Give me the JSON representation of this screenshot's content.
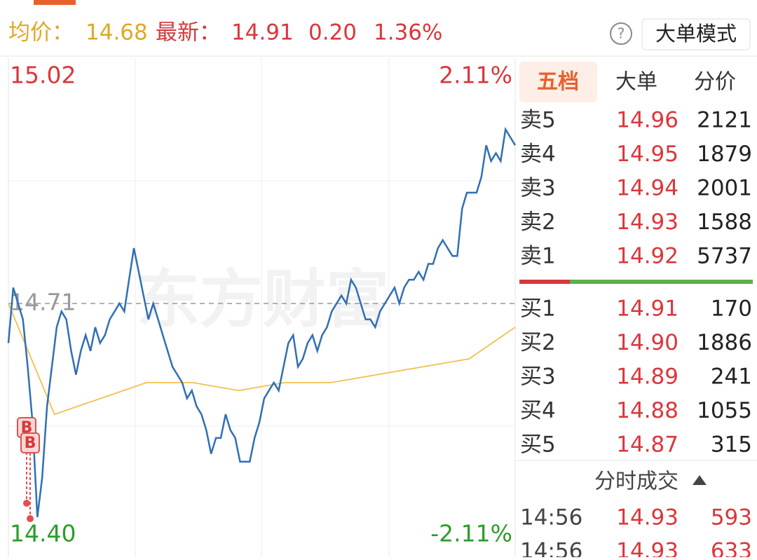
{
  "header": {
    "avg_label": "均价：",
    "avg_value": "14.68",
    "latest_label": "最新：",
    "latest_value": "14.91",
    "change": "0.20",
    "change_pct": "1.36%",
    "help_icon": "?",
    "mode_button": "大单模式"
  },
  "chart_data": {
    "type": "line",
    "watermark": "东方财富",
    "markers": [
      "B",
      "B"
    ],
    "ylim": [
      14.4,
      15.02
    ],
    "yticks": [
      {
        "value": 14.4,
        "label": "14.40"
      },
      14.71,
      15.02
    ],
    "y2lim": [
      -2.11,
      2.11
    ],
    "y2ticks": [
      {
        "value": -2.11,
        "label": "-2.11%"
      },
      {
        "value": 2.11,
        "label": "2.11%"
      }
    ],
    "series": [
      {
        "name": "price",
        "color": "#2f6fb5",
        "values": [
          14.66,
          14.73,
          14.71,
          14.69,
          14.63,
          14.56,
          14.44,
          14.49,
          14.58,
          14.63,
          14.68,
          14.7,
          14.69,
          14.65,
          14.62,
          14.65,
          14.67,
          14.65,
          14.68,
          14.66,
          14.67,
          14.69,
          14.7,
          14.71,
          14.7,
          14.74,
          14.78,
          14.75,
          14.72,
          14.69,
          14.71,
          14.69,
          14.67,
          14.65,
          14.63,
          14.62,
          14.61,
          14.59,
          14.6,
          14.58,
          14.57,
          14.55,
          14.52,
          14.54,
          14.54,
          14.57,
          14.55,
          14.54,
          14.51,
          14.51,
          14.51,
          14.54,
          14.56,
          14.59,
          14.6,
          14.61,
          14.6,
          14.63,
          14.66,
          14.67,
          14.63,
          14.64,
          14.66,
          14.67,
          14.65,
          14.67,
          14.68,
          14.7,
          14.71,
          14.72,
          14.71,
          14.74,
          14.73,
          14.71,
          14.69,
          14.69,
          14.68,
          14.7,
          14.71,
          14.72,
          14.73,
          14.71,
          14.73,
          14.74,
          14.74,
          14.75,
          14.74,
          14.76,
          14.76,
          14.78,
          14.79,
          14.78,
          14.77,
          14.77,
          14.83,
          14.85,
          14.85,
          14.85,
          14.87,
          14.91,
          14.89,
          14.9,
          14.89,
          14.93,
          14.92,
          14.91
        ]
      },
      {
        "name": "average",
        "color": "#f0c050",
        "values": [
          14.71,
          14.57,
          14.59,
          14.61,
          14.61,
          14.6,
          14.61,
          14.61,
          14.62,
          14.63,
          14.64,
          14.68
        ]
      }
    ]
  },
  "panel": {
    "tabs": [
      "五档",
      "大单",
      "分价"
    ],
    "sell": [
      [
        "卖5",
        "14.96",
        "2121"
      ],
      [
        "卖4",
        "14.95",
        "1879"
      ],
      [
        "卖3",
        "14.94",
        "2001"
      ],
      [
        "卖2",
        "14.93",
        "1588"
      ],
      [
        "卖1",
        "14.92",
        "5737"
      ]
    ],
    "buy": [
      [
        "买1",
        "14.91",
        "170"
      ],
      [
        "买2",
        "14.90",
        "1886"
      ],
      [
        "买3",
        "14.89",
        "241"
      ],
      [
        "买4",
        "14.88",
        "1055"
      ],
      [
        "买5",
        "14.87",
        "315"
      ]
    ],
    "trades_title": "分时成交",
    "trades": [
      [
        "14:56",
        "14.93",
        "593"
      ],
      [
        "14:56",
        "14.93",
        "633"
      ]
    ]
  }
}
